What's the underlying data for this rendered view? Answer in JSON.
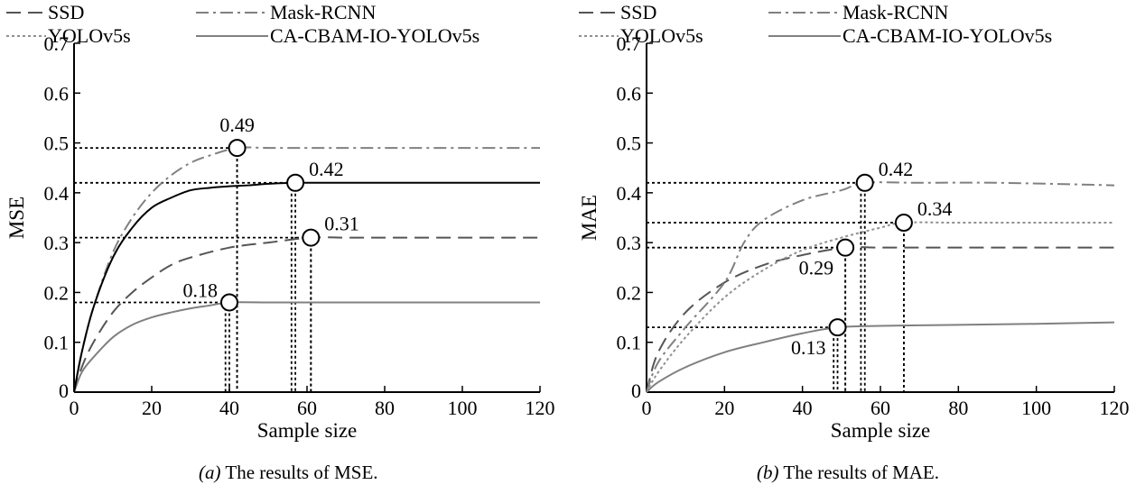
{
  "chart_data": [
    {
      "type": "line",
      "caption_tag": "(a)",
      "caption_text": "The results of MSE.",
      "xlabel": "Sample size",
      "ylabel": "MSE",
      "xlim": [
        0,
        120
      ],
      "ylim": [
        0,
        0.7
      ],
      "x_ticks": [
        "0",
        "20",
        "40",
        "60",
        "80",
        "100",
        "120"
      ],
      "y_ticks": [
        "0",
        "0.1",
        "0.2",
        "0.3",
        "0.4",
        "0.5",
        "0.6",
        "0.7"
      ],
      "grid": false,
      "legend_position": "top",
      "series": [
        {
          "name": "SSD",
          "style": "dash",
          "color": "#555555",
          "x": [
            0,
            2,
            5,
            10,
            15,
            20,
            25,
            30,
            40,
            50,
            61,
            70,
            80,
            100,
            120
          ],
          "y": [
            0,
            0.05,
            0.1,
            0.16,
            0.2,
            0.23,
            0.255,
            0.27,
            0.29,
            0.3,
            0.31,
            0.31,
            0.31,
            0.31,
            0.31
          ]
        },
        {
          "name": "Mask-RCNN",
          "style": "dashdot",
          "color": "#808080",
          "x": [
            0,
            2,
            5,
            10,
            15,
            20,
            25,
            30,
            35,
            42,
            50,
            60,
            80,
            100,
            120
          ],
          "y": [
            0,
            0.08,
            0.17,
            0.28,
            0.35,
            0.4,
            0.435,
            0.46,
            0.475,
            0.49,
            0.49,
            0.49,
            0.49,
            0.49,
            0.49
          ]
        },
        {
          "name": "CA-CBAM-IO-YOLOv5s",
          "style": "solid",
          "color": "#808080",
          "x": [
            0,
            2,
            5,
            10,
            15,
            20,
            25,
            30,
            35,
            40,
            50,
            60,
            80,
            100,
            120
          ],
          "y": [
            0,
            0.04,
            0.07,
            0.11,
            0.135,
            0.15,
            0.16,
            0.168,
            0.174,
            0.18,
            0.18,
            0.18,
            0.18,
            0.18,
            0.18
          ]
        },
        {
          "name": "",
          "style": "solid",
          "color": "#000000",
          "x": [
            0,
            2,
            5,
            10,
            15,
            20,
            25,
            30,
            35,
            40,
            45,
            50,
            57,
            70,
            90,
            120
          ],
          "y": [
            0,
            0.08,
            0.17,
            0.27,
            0.33,
            0.37,
            0.39,
            0.405,
            0.41,
            0.413,
            0.415,
            0.418,
            0.42,
            0.42,
            0.42,
            0.42
          ]
        }
      ],
      "annotations": [
        {
          "x": 42,
          "y": 0.49,
          "x_line": 42,
          "text": "0.49",
          "label_pos": "above"
        },
        {
          "x": 57,
          "y": 0.42,
          "x_line": 56,
          "text": "0.42",
          "label_pos": "right"
        },
        {
          "x": 61,
          "y": 0.31,
          "x_line": 61,
          "text": "0.31",
          "label_pos": "right"
        },
        {
          "x": 40,
          "y": 0.18,
          "x_line": 39,
          "text": "0.18",
          "label_pos": "left"
        }
      ]
    },
    {
      "type": "line",
      "caption_tag": "(b)",
      "caption_text": "The results of MAE.",
      "xlabel": "Sample size",
      "ylabel": "MAE",
      "xlim": [
        0,
        120
      ],
      "ylim": [
        0,
        0.7
      ],
      "x_ticks": [
        "0",
        "20",
        "40",
        "60",
        "80",
        "100",
        "120"
      ],
      "y_ticks": [
        "0",
        "0.1",
        "0.2",
        "0.3",
        "0.4",
        "0.5",
        "0.6",
        "0.7"
      ],
      "grid": false,
      "legend_position": "top",
      "series": [
        {
          "name": "SSD",
          "style": "dash",
          "color": "#555555",
          "x": [
            0,
            3,
            10,
            20,
            30,
            40,
            51,
            60,
            80,
            100,
            120
          ],
          "y": [
            0,
            0.08,
            0.16,
            0.22,
            0.255,
            0.275,
            0.29,
            0.29,
            0.29,
            0.29,
            0.29
          ]
        },
        {
          "name": "Mask-RCNN",
          "style": "dashdot",
          "color": "#808080",
          "x": [
            0,
            3,
            10,
            20,
            25,
            30,
            40,
            50,
            56,
            70,
            90,
            120
          ],
          "y": [
            0,
            0.06,
            0.13,
            0.22,
            0.3,
            0.345,
            0.385,
            0.405,
            0.42,
            0.42,
            0.42,
            0.415
          ]
        },
        {
          "name": "YOLOv5s",
          "style": "dot",
          "color": "#909090",
          "x": [
            0,
            3,
            10,
            20,
            30,
            40,
            50,
            60,
            66,
            80,
            100,
            120
          ],
          "y": [
            0,
            0.04,
            0.11,
            0.19,
            0.245,
            0.285,
            0.31,
            0.33,
            0.34,
            0.34,
            0.34,
            0.34
          ]
        },
        {
          "name": "CA-CBAM-IO-YOLOv5s",
          "style": "solid",
          "color": "#808080",
          "x": [
            0,
            3,
            10,
            20,
            30,
            40,
            49,
            60,
            80,
            100,
            120
          ],
          "y": [
            0,
            0.02,
            0.05,
            0.08,
            0.1,
            0.118,
            0.13,
            0.133,
            0.135,
            0.137,
            0.14
          ]
        }
      ],
      "annotations": [
        {
          "x": 56,
          "y": 0.42,
          "x_line": 55,
          "text": "0.42",
          "label_pos": "right"
        },
        {
          "x": 66,
          "y": 0.34,
          "x_line": 66,
          "text": "0.34",
          "label_pos": "right"
        },
        {
          "x": 51,
          "y": 0.29,
          "x_line": 51,
          "text": "0.29",
          "label_pos": "below-left"
        },
        {
          "x": 49,
          "y": 0.13,
          "x_line": 48,
          "text": "0.13",
          "label_pos": "below-left"
        }
      ]
    }
  ],
  "legend": {
    "entries": [
      {
        "label": "SSD",
        "style": "dash",
        "color": "#555555"
      },
      {
        "label": "Mask-RCNN",
        "style": "dashdot",
        "color": "#808080"
      },
      {
        "label": "YOLOv5s",
        "style": "dot",
        "color": "#909090"
      },
      {
        "label": "CA-CBAM-IO-YOLOv5s",
        "style": "solid",
        "color": "#808080"
      }
    ]
  }
}
